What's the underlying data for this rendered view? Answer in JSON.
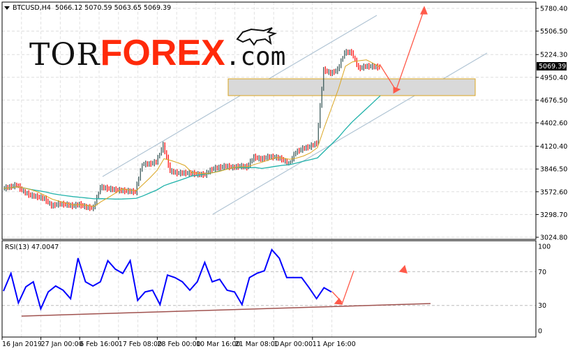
{
  "header": {
    "symbol": "BTCUSD,H4",
    "ohlc": "5066.12 5070.59 5063.65 5069.39"
  },
  "logo": {
    "tor": "TOR",
    "forex": "FOREX",
    "com": ".com"
  },
  "colors": {
    "bull_candle": "#2f4f4f",
    "bear_candle": "#ff0000",
    "fast_ma": "#daa520",
    "slow_ma": "#20b2aa",
    "rsi": "#0000ff",
    "arrow": "#ff5a4a",
    "channel": "#b0c4d4"
  },
  "chart_data": [
    {
      "type": "line",
      "title": "BTCUSD,H4",
      "price_axis_ticks": [
        "5780.40",
        "5506.50",
        "5224.30",
        "4950.40",
        "4676.50",
        "4402.60",
        "4120.40",
        "3846.50",
        "3572.60",
        "3298.70",
        "3024.80"
      ],
      "ylim": [
        3024.8,
        5780.4
      ],
      "current_price": "5069.39",
      "close": [
        3613,
        3630,
        3655,
        3571,
        3529,
        3512,
        3487,
        3403,
        3428,
        3420,
        3403,
        3420,
        3386,
        3378,
        3630,
        3613,
        3597,
        3588,
        3580,
        3571,
        3907,
        3907,
        3932,
        4134,
        3823,
        3798,
        3798,
        3798,
        3781,
        3780,
        3848,
        3865,
        3882,
        3865,
        3882,
        3870,
        3991,
        3966,
        3991,
        3991,
        3966,
        3907,
        4050,
        4092,
        4117,
        4159,
        5041,
        4999,
        5041,
        5251,
        5251,
        5058,
        5083,
        5083,
        5069
      ],
      "resistance_zone": [
        4730,
        4932
      ],
      "grid": true
    },
    {
      "type": "line",
      "title": "RSI(13) 47.0047",
      "ylim": [
        0,
        100
      ],
      "levels": [
        "100",
        "70",
        "30",
        "0"
      ],
      "values": [
        47,
        68,
        33,
        52,
        58,
        26,
        46,
        53,
        48,
        38,
        86,
        58,
        53,
        58,
        83,
        73,
        68,
        83,
        36,
        46,
        48,
        31,
        66,
        63,
        58,
        48,
        58,
        81,
        58,
        61,
        48,
        46,
        31,
        63,
        68,
        71,
        96,
        86,
        63,
        63,
        63,
        51,
        38,
        51,
        46
      ]
    }
  ],
  "time_axis": [
    "16 Jan 2019",
    "27 Jan 00:00",
    "6 Feb 16:00",
    "17 Feb 08:00",
    "28 Feb 00:00",
    "10 Mar 16:00",
    "21 Mar 08:00",
    "1 Apr 00:00",
    "11 Apr 16:00"
  ]
}
